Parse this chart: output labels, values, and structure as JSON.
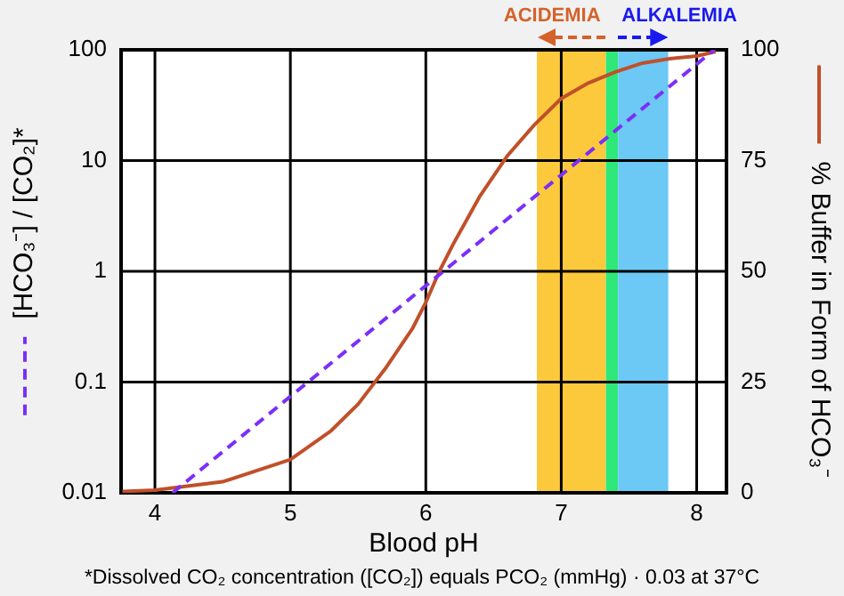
{
  "chart_data": {
    "type": "line",
    "xlabel": "Blood pH",
    "ylabel": "[HCO₃⁻] / [CO₂]*",
    "y2label": "% Buffer in Form of HCO₃⁻",
    "xlim": [
      3.75,
      8.22
    ],
    "xticks": [
      4,
      5,
      6,
      7,
      8
    ],
    "ylim": [
      0.01,
      100
    ],
    "yticks": [
      0.01,
      0.1,
      1,
      10,
      100
    ],
    "log": "y",
    "y2lim": [
      0,
      100
    ],
    "y2ticks": [
      0,
      25,
      50,
      75,
      100
    ],
    "grid": true,
    "marker": "none",
    "series": [
      {
        "x": [
          4.13,
          8.13
        ],
        "values": [
          0.01,
          100
        ],
        "color": "#7b2ff7",
        "line_style": "dashed"
      },
      {
        "axis": "y2",
        "x": [
          3.76,
          4,
          4.5,
          5,
          5.3,
          5.5,
          5.7,
          5.9,
          6,
          6.1,
          6.2,
          6.4,
          6.6,
          6.8,
          7,
          7.2,
          7.4,
          7.6,
          7.8,
          8,
          8.14
        ],
        "values": [
          0.3,
          0.6,
          2.5,
          7.5,
          14,
          20,
          28,
          37,
          43,
          50,
          56,
          67,
          76,
          83,
          89,
          92.5,
          95,
          97,
          98,
          98.6,
          99.6
        ],
        "color": "#c0502a",
        "line_style": "solid"
      }
    ],
    "bands": [
      {
        "axis": "x",
        "from": 6.82,
        "to": 7.33,
        "color": "#fcc93c",
        "label": "ACIDEMIA"
      },
      {
        "axis": "x",
        "from": 7.33,
        "to": 7.42,
        "color": "#2ee87a"
      },
      {
        "axis": "x",
        "from": 7.42,
        "to": 7.79,
        "color": "#6cc8f5",
        "label": "ALKALEMIA"
      }
    ],
    "annotations": [
      "*Dissolved CO₂ concentration ([CO₂]) equals PCO₂ (mmHg) · 0.03 at 37°C"
    ]
  }
}
